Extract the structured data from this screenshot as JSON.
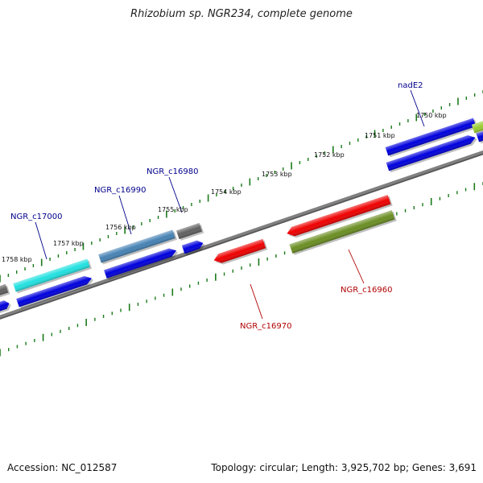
{
  "title": "Rhizobium sp. NGR234, complete genome",
  "footer": {
    "accession": "Accession: NC_012587",
    "summary": "Topology: circular; Length: 3,925,702 bp; Genes: 3,691"
  },
  "kbp_ticks": [
    "1750 kbp",
    "1751 kbp",
    "1752 kbp",
    "1753 kbp",
    "1754 kbp",
    "1755 kbp",
    "1756 kbp",
    "1757 kbp",
    "1758 kbp"
  ],
  "gene_labels": {
    "nadE2": "nadE2",
    "ngr_c16980": "NGR_c16980",
    "ngr_c16990": "NGR_c16990",
    "ngr_c17000": "NGR_c17000",
    "ngr_c16960": "NGR_c16960",
    "ngr_c16970": "NGR_c16970"
  },
  "colors": {
    "backbone": "#808080",
    "tick": "#1a7a1a",
    "cds_blue": "#0000dd",
    "label_blue": "#00008b",
    "label_red": "#b00000",
    "cyan": "#22e0e0",
    "steel": "#4682b4",
    "grey": "#606060",
    "red": "#ee0000",
    "olive": "#6b8e23",
    "lime": "#9acd32"
  }
}
